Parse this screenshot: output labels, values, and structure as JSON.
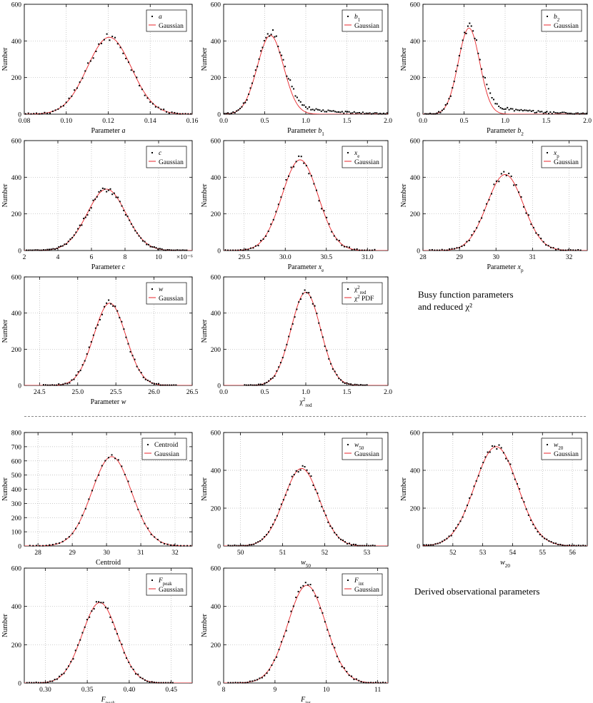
{
  "captions": {
    "busy_line1": "Busy function parameters",
    "busy_line2": "and reduced χ²",
    "derived": "Derived observational parameters"
  },
  "chart_data": [
    {
      "type": "scatter",
      "xlabel": "Parameter a",
      "ylabel": "Number",
      "xlim": [
        0.08,
        0.16
      ],
      "ylim": [
        0,
        600
      ],
      "xticks": [
        "0.08",
        "0.10",
        "0.12",
        "0.14",
        "0.16"
      ],
      "yticks": [
        "0",
        "200",
        "400",
        "600"
      ],
      "legend": [
        "a",
        "Gaussian"
      ],
      "legend_position": "top-right",
      "curve": {
        "mean": 0.1205,
        "sigma": 0.0105,
        "peak": 420
      },
      "noise": 22,
      "n_points": 62
    },
    {
      "type": "scatter",
      "xlabel": "Parameter b1",
      "ylabel": "Number",
      "xlim": [
        0,
        2
      ],
      "ylim": [
        0,
        600
      ],
      "xticks": [
        "0.0",
        "0.5",
        "1.0",
        "1.5",
        "2.0"
      ],
      "yticks": [
        "0",
        "200",
        "400",
        "600"
      ],
      "legend": [
        "b1",
        "Gaussian"
      ],
      "legend_position": "top-right",
      "curve": {
        "mean": 0.57,
        "sigma": 0.16,
        "peak": 430
      },
      "tail": {
        "height": 38,
        "decay": 0.45
      },
      "noise": 20,
      "n_points": 95
    },
    {
      "type": "scatter",
      "xlabel": "Parameter b2",
      "ylabel": "Number",
      "xlim": [
        0,
        2
      ],
      "ylim": [
        0,
        600
      ],
      "xticks": [
        "0.0",
        "0.5",
        "1.0",
        "1.5",
        "2.0"
      ],
      "yticks": [
        "0",
        "200",
        "400",
        "600"
      ],
      "legend": [
        "b2",
        "Gaussian"
      ],
      "legend_position": "top-right",
      "curve": {
        "mean": 0.56,
        "sigma": 0.13,
        "peak": 470
      },
      "tail": {
        "height": 45,
        "decay": 0.45
      },
      "noise": 22,
      "n_points": 95
    },
    {
      "type": "scatter",
      "xlabel": "Parameter c",
      "ylabel": "Number",
      "x_multiplier": "×10⁻⁶",
      "xlim": [
        2,
        12
      ],
      "ylim": [
        0,
        600
      ],
      "xticks": [
        "2",
        "4",
        "6",
        "8",
        "10"
      ],
      "yticks": [
        "0",
        "200",
        "400",
        "600"
      ],
      "legend": [
        "c",
        "Gaussian"
      ],
      "legend_position": "top-right",
      "curve": {
        "mean": 6.9,
        "sigma": 1.15,
        "peak": 335
      },
      "tail": {
        "height": 0,
        "decay": 1
      },
      "noise": 14,
      "n_points": 85
    },
    {
      "type": "scatter",
      "xlabel": "Parameter xe",
      "ylabel": "Number",
      "xlim": [
        29.25,
        31.25
      ],
      "ylim": [
        0,
        600
      ],
      "xticks": [
        "29.5",
        "30.0",
        "30.5",
        "31.0"
      ],
      "yticks": [
        "0",
        "200",
        "400",
        "600"
      ],
      "legend": [
        "xe",
        "Gaussian"
      ],
      "legend_position": "top-right",
      "curve": {
        "mean": 30.18,
        "sigma": 0.22,
        "peak": 495
      },
      "noise": 22,
      "n_points": 60
    },
    {
      "type": "scatter",
      "xlabel": "Parameter xp",
      "ylabel": "Number",
      "xlim": [
        28,
        32.5
      ],
      "ylim": [
        0,
        600
      ],
      "xticks": [
        "28",
        "29",
        "30",
        "31",
        "32"
      ],
      "yticks": [
        "0",
        "200",
        "400",
        "600"
      ],
      "legend": [
        "xp",
        "Gaussian"
      ],
      "legend_position": "top-right",
      "curve": {
        "mean": 30.25,
        "sigma": 0.5,
        "peak": 415
      },
      "noise": 18,
      "n_points": 62
    },
    {
      "type": "scatter",
      "xlabel": "Parameter w",
      "ylabel": "Number",
      "xlim": [
        24.3,
        26.5
      ],
      "ylim": [
        0,
        600
      ],
      "xticks": [
        "24.5",
        "25.0",
        "25.5",
        "26.0",
        "26.5"
      ],
      "yticks": [
        "0",
        "200",
        "400",
        "600"
      ],
      "legend": [
        "w",
        "Gaussian"
      ],
      "legend_position": "top-right",
      "curve": {
        "mean": 25.42,
        "sigma": 0.21,
        "peak": 455
      },
      "noise": 20,
      "n_points": 62
    },
    {
      "type": "scatter",
      "xlabel": "χ²red",
      "ylabel": "Number",
      "xlim": [
        0,
        2
      ],
      "ylim": [
        0,
        600
      ],
      "xticks": [
        "0.0",
        "0.5",
        "1.0",
        "1.5",
        "2.0"
      ],
      "yticks": [
        "0",
        "200",
        "400",
        "600"
      ],
      "legend": [
        "χ²red",
        "χ² PDF"
      ],
      "legend_position": "top-right",
      "curve": {
        "mean": 1.0,
        "sigma": 0.18,
        "peak": 515
      },
      "noise": 15,
      "n_points": 62
    },
    {
      "type": "scatter",
      "xlabel": "Centroid",
      "ylabel": "Number",
      "xlim": [
        27.6,
        32.5
      ],
      "ylim": [
        0,
        800
      ],
      "xticks": [
        "28",
        "29",
        "30",
        "31",
        "32"
      ],
      "yticks": [
        "0",
        "100",
        "200",
        "300",
        "400",
        "500",
        "600",
        "700",
        "800"
      ],
      "legend": [
        "Centroid",
        "Gaussian"
      ],
      "legend_position": "top-right",
      "curve": {
        "mean": 30.15,
        "sigma": 0.58,
        "peak": 630
      },
      "noise": 14,
      "n_points": 50
    },
    {
      "type": "scatter",
      "xlabel": "w50",
      "ylabel": "Number",
      "xlim": [
        49.6,
        53.5
      ],
      "ylim": [
        0,
        600
      ],
      "xticks": [
        "50",
        "51",
        "52",
        "53"
      ],
      "yticks": [
        "0",
        "200",
        "400",
        "600"
      ],
      "legend": [
        "w50",
        "Gaussian"
      ],
      "legend_position": "top-right",
      "curve": {
        "mean": 51.45,
        "sigma": 0.42,
        "peak": 410
      },
      "noise": 16,
      "n_points": 70
    },
    {
      "type": "scatter",
      "xlabel": "w20",
      "ylabel": "Number",
      "xlim": [
        51,
        56.5
      ],
      "ylim": [
        0,
        600
      ],
      "xticks": [
        "52",
        "53",
        "54",
        "55",
        "56"
      ],
      "yticks": [
        "0",
        "200",
        "400",
        "600"
      ],
      "legend": [
        "w20",
        "Gaussian"
      ],
      "legend_position": "top-right",
      "curve": {
        "mean": 53.45,
        "sigma": 0.72,
        "peak": 525
      },
      "noise": 14,
      "n_points": 72
    },
    {
      "type": "scatter",
      "xlabel": "Fpeak",
      "ylabel": "Number",
      "xlim": [
        0.275,
        0.475
      ],
      "ylim": [
        0,
        600
      ],
      "xticks": [
        "0.30",
        "0.35",
        "0.40",
        "0.45"
      ],
      "yticks": [
        "0",
        "200",
        "400",
        "600"
      ],
      "legend": [
        "Fpeak",
        "Gaussian"
      ],
      "legend_position": "top-right",
      "curve": {
        "mean": 0.365,
        "sigma": 0.021,
        "peak": 420
      },
      "noise": 14,
      "n_points": 64
    },
    {
      "type": "scatter",
      "xlabel": "Fint",
      "ylabel": "Number",
      "xlim": [
        8,
        11.2
      ],
      "ylim": [
        0,
        600
      ],
      "xticks": [
        "8",
        "9",
        "10",
        "11"
      ],
      "yticks": [
        "0",
        "200",
        "400",
        "600"
      ],
      "legend": [
        "Fint",
        "Gaussian"
      ],
      "legend_position": "top-right",
      "curve": {
        "mean": 9.62,
        "sigma": 0.37,
        "peak": 510
      },
      "noise": 16,
      "n_points": 66
    }
  ]
}
